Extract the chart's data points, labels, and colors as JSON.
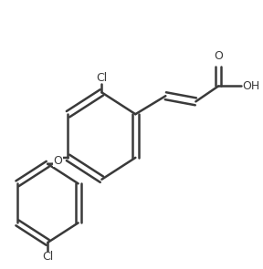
{
  "bg_color": "#ffffff",
  "line_color": "#3a3a3a",
  "line_width": 1.8,
  "font_size": 9,
  "font_color": "#3a3a3a",
  "figsize": [
    2.88,
    2.95
  ],
  "dpi": 100,
  "atoms": {
    "Cl1_label": "Cl",
    "Cl2_label": "Cl",
    "O_label": "O",
    "OH_label": "OH",
    "O_carboxyl_label": "O"
  }
}
